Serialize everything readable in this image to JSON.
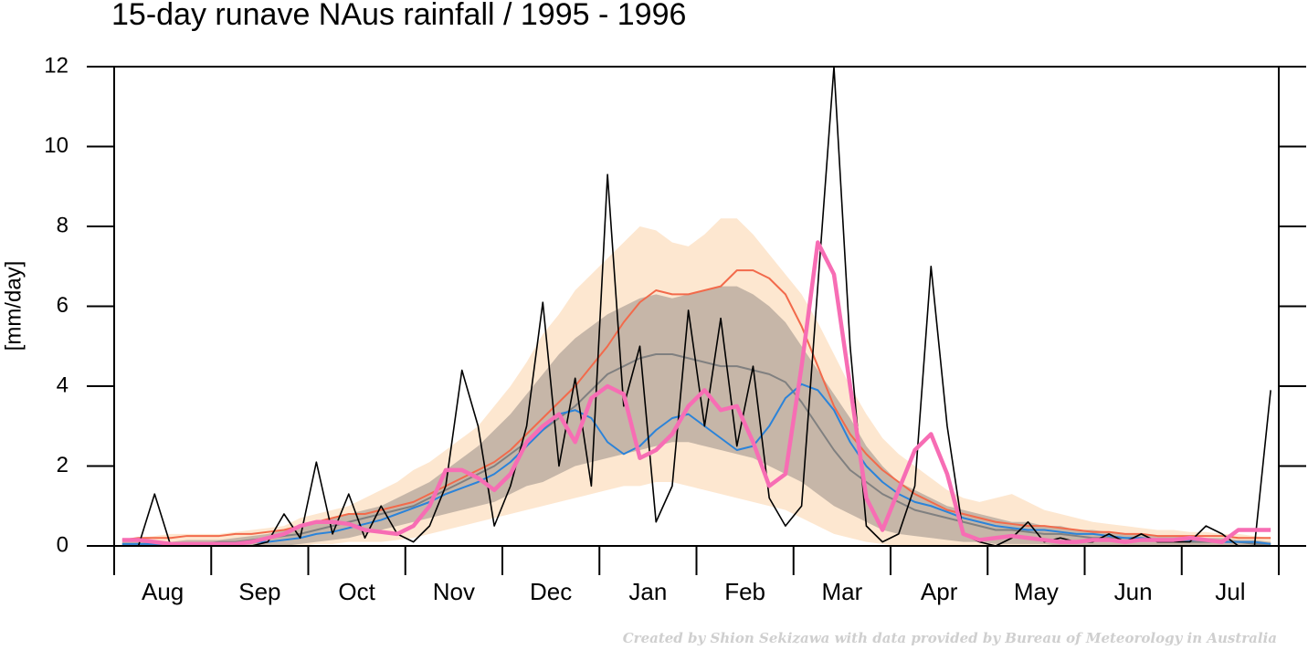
{
  "chart_data": {
    "type": "line",
    "title": "15-day runave NAus rainfall  /  1995 - 1996",
    "ylabel": "[mm/day]",
    "note": "Created by Shion Sekizawa with data provided by Bureau of Meteorology in Australia",
    "categories": [
      null,
      null,
      null,
      "Aug",
      null,
      null,
      null,
      null,
      null,
      "Sep",
      null,
      null,
      null,
      null,
      null,
      "Oct",
      null,
      null,
      null,
      null,
      null,
      "Nov",
      null,
      null,
      null,
      null,
      null,
      "Dec",
      null,
      null,
      null,
      null,
      null,
      "Jan",
      null,
      null,
      null,
      null,
      null,
      "Feb",
      null,
      null,
      null,
      null,
      null,
      "Mar",
      null,
      null,
      null,
      null,
      null,
      "Apr",
      null,
      null,
      null,
      null,
      null,
      "May",
      null,
      null,
      null,
      null,
      null,
      "Jun",
      null,
      null,
      null,
      null,
      null,
      "Jul",
      null,
      null
    ],
    "ylim": [
      0,
      12
    ],
    "yticks": [
      0,
      2,
      4,
      6,
      8,
      10,
      12
    ],
    "bands": [
      {
        "color": "#fde7d0",
        "upper": [
          0.15,
          0.2,
          0.25,
          0.3,
          0.3,
          0.3,
          0.3,
          0.35,
          0.4,
          0.45,
          0.5,
          0.7,
          0.8,
          0.9,
          1.0,
          1.2,
          1.4,
          1.6,
          1.9,
          2.1,
          2.4,
          2.7,
          3.0,
          3.5,
          4.0,
          4.6,
          5.3,
          5.8,
          6.4,
          6.8,
          7.2,
          7.6,
          8.0,
          7.9,
          7.6,
          7.5,
          7.8,
          8.2,
          8.2,
          7.8,
          7.3,
          6.8,
          6.3,
          5.6,
          4.8,
          4.0,
          3.3,
          2.7,
          2.3,
          2.0,
          1.7,
          1.4,
          1.2,
          1.1,
          1.2,
          1.3,
          1.1,
          0.9,
          0.8,
          0.7,
          0.6,
          0.55,
          0.5,
          0.45,
          0.4,
          0.4,
          0.35,
          0.35,
          0.3,
          0.3,
          0.25,
          0.2
        ],
        "lower": [
          0,
          0,
          0,
          0,
          0,
          0,
          0,
          0,
          0,
          0,
          0,
          0,
          0.05,
          0.05,
          0.1,
          0.1,
          0.1,
          0.15,
          0.2,
          0.3,
          0.4,
          0.5,
          0.6,
          0.7,
          0.8,
          0.9,
          1.0,
          1.1,
          1.2,
          1.3,
          1.4,
          1.5,
          1.5,
          1.6,
          1.6,
          1.5,
          1.4,
          1.3,
          1.2,
          1.1,
          1.0,
          0.9,
          0.7,
          0.5,
          0.3,
          0.2,
          0.1,
          0.05,
          0,
          0,
          0,
          0,
          0,
          0,
          0,
          0,
          0,
          0,
          0,
          0,
          0,
          0,
          0,
          0,
          0,
          0,
          0,
          0,
          0,
          0,
          0,
          0
        ]
      },
      {
        "color": "#c6b6a8",
        "upper": [
          0.1,
          0.1,
          0.1,
          0.1,
          0.15,
          0.15,
          0.15,
          0.2,
          0.25,
          0.3,
          0.4,
          0.5,
          0.6,
          0.7,
          0.8,
          0.9,
          1.0,
          1.2,
          1.4,
          1.6,
          1.9,
          2.2,
          2.5,
          2.9,
          3.3,
          3.8,
          4.3,
          4.8,
          5.2,
          5.5,
          5.8,
          6.0,
          6.2,
          6.3,
          6.2,
          6.3,
          6.4,
          6.5,
          6.5,
          6.3,
          6.0,
          5.6,
          5.0,
          4.4,
          3.8,
          3.2,
          2.5,
          2.0,
          1.6,
          1.4,
          1.2,
          1.0,
          0.9,
          0.8,
          0.7,
          0.6,
          0.6,
          0.5,
          0.5,
          0.4,
          0.4,
          0.35,
          0.3,
          0.3,
          0.25,
          0.25,
          0.2,
          0.2,
          0.2,
          0.15,
          0.15,
          0.1
        ],
        "lower": [
          0,
          0,
          0,
          0,
          0,
          0,
          0,
          0,
          0,
          0,
          0,
          0.05,
          0.1,
          0.15,
          0.2,
          0.3,
          0.4,
          0.5,
          0.6,
          0.7,
          0.8,
          0.9,
          1.0,
          1.1,
          1.3,
          1.5,
          1.6,
          1.8,
          2.0,
          2.1,
          2.2,
          2.3,
          2.4,
          2.5,
          2.6,
          2.6,
          2.5,
          2.4,
          2.3,
          2.2,
          2.0,
          1.8,
          1.6,
          1.3,
          1.0,
          0.8,
          0.6,
          0.4,
          0.3,
          0.25,
          0.2,
          0.15,
          0.1,
          0.1,
          0.05,
          0.05,
          0.05,
          0.05,
          0,
          0,
          0,
          0,
          0,
          0,
          0,
          0,
          0,
          0,
          0,
          0,
          0,
          0
        ]
      }
    ],
    "series": [
      {
        "color": "#f26a4b",
        "width": 2,
        "values": [
          0.15,
          0.2,
          0.2,
          0.2,
          0.25,
          0.25,
          0.25,
          0.3,
          0.3,
          0.35,
          0.4,
          0.5,
          0.6,
          0.7,
          0.8,
          0.8,
          0.9,
          1.0,
          1.1,
          1.3,
          1.5,
          1.7,
          1.9,
          2.1,
          2.4,
          2.8,
          3.2,
          3.6,
          4.0,
          4.5,
          5.0,
          5.6,
          6.1,
          6.4,
          6.3,
          6.3,
          6.4,
          6.5,
          6.9,
          6.9,
          6.7,
          6.3,
          5.5,
          4.5,
          3.5,
          2.8,
          2.3,
          1.9,
          1.6,
          1.3,
          1.1,
          0.9,
          0.8,
          0.7,
          0.6,
          0.55,
          0.5,
          0.5,
          0.45,
          0.4,
          0.35,
          0.35,
          0.3,
          0.3,
          0.25,
          0.25,
          0.25,
          0.25,
          0.25,
          0.2,
          0.2,
          0.2
        ]
      },
      {
        "color": "#808080",
        "width": 2,
        "values": [
          0.05,
          0.05,
          0.05,
          0.05,
          0.05,
          0.05,
          0.1,
          0.1,
          0.15,
          0.2,
          0.25,
          0.3,
          0.4,
          0.5,
          0.6,
          0.7,
          0.8,
          0.9,
          1.0,
          1.2,
          1.4,
          1.6,
          1.8,
          2.0,
          2.3,
          2.6,
          2.9,
          3.2,
          3.5,
          3.9,
          4.3,
          4.5,
          4.7,
          4.8,
          4.8,
          4.7,
          4.6,
          4.5,
          4.5,
          4.4,
          4.3,
          4.1,
          3.6,
          3.0,
          2.4,
          1.9,
          1.6,
          1.3,
          1.1,
          0.9,
          0.8,
          0.7,
          0.6,
          0.5,
          0.4,
          0.4,
          0.35,
          0.3,
          0.3,
          0.25,
          0.2,
          0.2,
          0.2,
          0.15,
          0.15,
          0.15,
          0.1,
          0.1,
          0.1,
          0.1,
          0.05,
          0.05
        ]
      },
      {
        "color": "#2b83d9",
        "width": 2,
        "values": [
          0.05,
          0.05,
          0.05,
          0.05,
          0.05,
          0.05,
          0.05,
          0.05,
          0.1,
          0.1,
          0.15,
          0.2,
          0.3,
          0.35,
          0.45,
          0.55,
          0.65,
          0.8,
          0.95,
          1.1,
          1.3,
          1.45,
          1.6,
          1.8,
          2.1,
          2.5,
          2.9,
          3.3,
          3.4,
          3.2,
          2.6,
          2.3,
          2.5,
          2.9,
          3.2,
          3.3,
          3.0,
          2.7,
          2.4,
          2.5,
          3.0,
          3.7,
          4.05,
          3.9,
          3.4,
          2.6,
          2.0,
          1.6,
          1.3,
          1.1,
          1.0,
          0.85,
          0.7,
          0.6,
          0.5,
          0.45,
          0.4,
          0.4,
          0.35,
          0.3,
          0.3,
          0.25,
          0.2,
          0.2,
          0.15,
          0.15,
          0.15,
          0.15,
          0.1,
          0.1,
          0.1,
          0.05
        ]
      },
      {
        "color": "#000000",
        "width": 1.6,
        "values": [
          0,
          0,
          1.3,
          0,
          0,
          0,
          0,
          0,
          0,
          0.1,
          0.8,
          0.2,
          2.1,
          0.3,
          1.3,
          0.2,
          1.0,
          0.3,
          0.1,
          0.5,
          1.5,
          4.4,
          3.0,
          0.5,
          1.5,
          3.0,
          6.1,
          2.0,
          4.2,
          1.5,
          9.3,
          3.5,
          5.0,
          0.6,
          1.5,
          5.9,
          3.0,
          5.7,
          2.5,
          4.5,
          1.2,
          0.5,
          1.0,
          6.5,
          12,
          5.0,
          0.5,
          0.1,
          0.3,
          1.5,
          7.0,
          3.0,
          0.3,
          0.1,
          0,
          0.2,
          0.6,
          0.1,
          0.2,
          0.1,
          0.1,
          0.3,
          0.1,
          0.3,
          0.1,
          0.1,
          0.1,
          0.5,
          0.3,
          0,
          0,
          3.9
        ]
      },
      {
        "color": "#f76db4",
        "width": 4.5,
        "values": [
          0.15,
          0.15,
          0.1,
          0.05,
          0.05,
          0.05,
          0.05,
          0.05,
          0.1,
          0.2,
          0.3,
          0.5,
          0.6,
          0.6,
          0.55,
          0.4,
          0.35,
          0.3,
          0.5,
          1.0,
          1.9,
          1.9,
          1.7,
          1.4,
          1.8,
          2.6,
          3.0,
          3.3,
          2.6,
          3.7,
          4.0,
          3.8,
          2.2,
          2.4,
          2.8,
          3.5,
          3.9,
          3.4,
          3.5,
          2.6,
          1.5,
          1.8,
          4.5,
          7.6,
          6.8,
          4.0,
          1.2,
          0.4,
          1.4,
          2.4,
          2.8,
          1.8,
          0.3,
          0.15,
          0.2,
          0.25,
          0.2,
          0.15,
          0.1,
          0.1,
          0.15,
          0.15,
          0.1,
          0.15,
          0.15,
          0.15,
          0.2,
          0.15,
          0.1,
          0.4,
          0.4,
          0.4
        ]
      }
    ]
  }
}
